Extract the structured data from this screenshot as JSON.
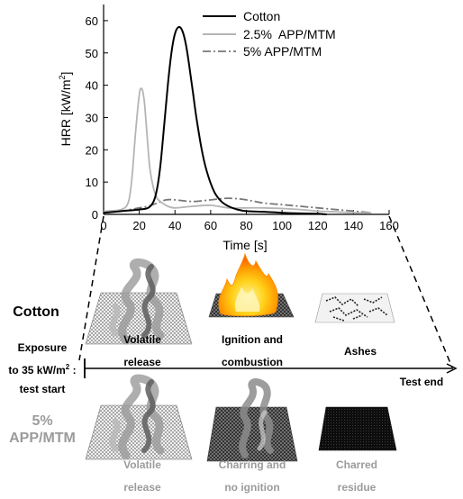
{
  "chart_data": {
    "type": "line",
    "xlabel": "Time [s]",
    "ylabel_main": "HRR [kW/m",
    "ylabel_sup": "2",
    "ylabel_end": "]",
    "xlim": [
      0,
      160
    ],
    "ylim": [
      0,
      65
    ],
    "xticks": [
      "0",
      "20",
      "40",
      "60",
      "80",
      "100",
      "120",
      "140",
      "160"
    ],
    "yticks": [
      "0",
      "10",
      "20",
      "30",
      "40",
      "50",
      "60"
    ],
    "legend_position": "top-right",
    "series": [
      {
        "name": "Cotton",
        "color": "#000000",
        "style": "solid",
        "x": [
          0,
          10,
          20,
          25,
          28,
          30,
          32,
          34,
          36,
          38,
          40,
          42,
          44,
          46,
          48,
          50,
          52,
          55,
          58,
          62,
          66,
          70,
          75,
          80,
          90,
          100,
          110,
          120,
          125
        ],
        "y": [
          0.5,
          1,
          1.5,
          2,
          4,
          8,
          16,
          28,
          40,
          50,
          56,
          58,
          57,
          53,
          46,
          38,
          30,
          20,
          13,
          7,
          4,
          2.5,
          1.5,
          1,
          0.8,
          0.5,
          0.3,
          0.2,
          0
        ]
      },
      {
        "name": "2.5%  APP/MTM",
        "color": "#b5b5b5",
        "style": "solid",
        "x": [
          0,
          10,
          14,
          16,
          18,
          20,
          21,
          22,
          23,
          24,
          25,
          26,
          28,
          30,
          33,
          36,
          40,
          50,
          60,
          70,
          80,
          90,
          100,
          110,
          120,
          130,
          140,
          150
        ],
        "y": [
          1,
          1.5,
          4,
          12,
          26,
          37,
          39,
          38,
          34,
          27,
          20,
          14,
          8,
          5,
          3.5,
          2.5,
          2,
          2.5,
          2.8,
          2,
          2,
          2,
          1.8,
          1.5,
          1,
          0.8,
          0.5,
          0.5
        ]
      },
      {
        "name": "5% APP/MTM",
        "color": "#777777",
        "style": "dashdot",
        "x": [
          0,
          10,
          15,
          20,
          25,
          30,
          35,
          40,
          50,
          60,
          70,
          80,
          90,
          100,
          110,
          120,
          130,
          140,
          150
        ],
        "y": [
          0.5,
          1,
          1.5,
          2,
          2.5,
          3.5,
          4.5,
          4.5,
          4,
          4.5,
          5,
          4.5,
          3.5,
          3,
          2.5,
          2,
          1.5,
          1,
          0.5
        ]
      }
    ]
  },
  "schematic": {
    "sample_top": "Cotton",
    "sample_bottom_line1": "5%",
    "sample_bottom_line2": "APP/MTM",
    "exposure_line1": "Exposure",
    "exposure_line2_main": "to 35 kW/m",
    "exposure_line2_sup": "2",
    "exposure_line2_end": " :",
    "exposure_line3": "test start",
    "test_end": "Test end",
    "top_stages": [
      {
        "line1": "Volatile",
        "line2": "release"
      },
      {
        "line1": "Ignition and",
        "line2": "combustion"
      },
      {
        "line1": "Ashes",
        "line2": ""
      }
    ],
    "bottom_stages": [
      {
        "line1": "Volatile",
        "line2": "release"
      },
      {
        "line1": "Charring and",
        "line2": "no ignition"
      },
      {
        "line1": "Charred",
        "line2": "residue"
      }
    ]
  }
}
